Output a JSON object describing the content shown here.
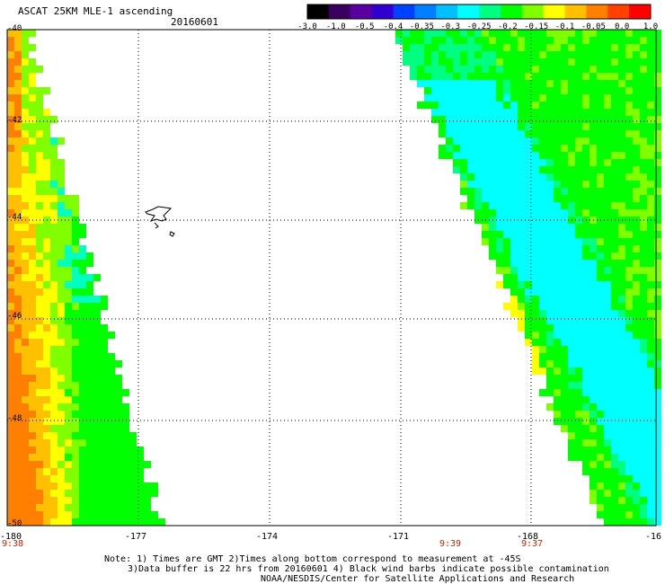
{
  "header": {
    "title": "ASCAT 25KM MLE-1 ascending",
    "date": "20160601"
  },
  "colorbar": {
    "labels": [
      "-3.0",
      "-1.0",
      "-0.5",
      "-0.4",
      "-0.35",
      "-0.3",
      "-0.25",
      "-0.2",
      "-0.15",
      "-0.1",
      "-0.05",
      "0.0",
      "1.0"
    ],
    "colors": [
      "#000000",
      "#3a0060",
      "#5a00a0",
      "#3000d0",
      "#0040ff",
      "#0080ff",
      "#00c0ff",
      "#00ffff",
      "#00ff80",
      "#00ff00",
      "#80ff00",
      "#ffff00",
      "#ffc000",
      "#ff8000",
      "#ff4000",
      "#ff0000"
    ]
  },
  "map": {
    "lat_labels": [
      "-40",
      "-42",
      "-44",
      "-46",
      "-48",
      "-50"
    ],
    "lon_labels": [
      "-180",
      "-177",
      "-174",
      "-171",
      "-168",
      "-16"
    ],
    "time_labels": [
      "9:38",
      "9:39",
      "9:37"
    ]
  },
  "footer": {
    "note_line1": "Note: 1) Times are GMT 2)Times along bottom correspond to measurement at -45S",
    "note_line2": "3)Data buffer is 22 hrs from 20160601 4) Black wind barbs indicate possible contamination",
    "note_line3": "NOAA/NESDIS/Center for Satellite Applications and Research"
  }
}
